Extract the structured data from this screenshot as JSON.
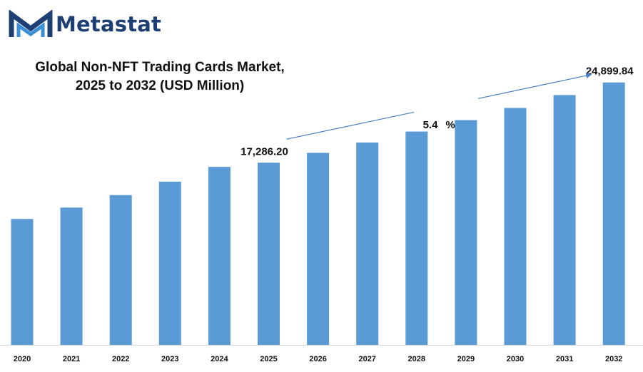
{
  "brand": {
    "name": "Metastat",
    "logo_icon": "metastat-m-logo-icon",
    "logo_colors": [
      "#1e3f73",
      "#3a8fd6"
    ]
  },
  "chart_data": {
    "type": "bar",
    "title_lines": [
      "Global Non-NFT Trading Cards Market,",
      "2025 to 2032 (USD Million)"
    ],
    "xlabel": "",
    "ylabel": "",
    "categories": [
      "2020",
      "2021",
      "2022",
      "2023",
      "2024",
      "2025",
      "2026",
      "2027",
      "2028",
      "2029",
      "2030",
      "2031",
      "2032"
    ],
    "values": [
      11950,
      13030,
      14210,
      15490,
      16890,
      17286.2,
      18220,
      19200,
      20240,
      21330,
      22480,
      23700,
      24899.84
    ],
    "ylim": [
      0,
      26500
    ],
    "bar_color": "#5b9bd5",
    "data_labels": [
      {
        "category": "2025",
        "text": "17,286.20"
      },
      {
        "category": "2032",
        "text": "24,899.84"
      }
    ],
    "annotation": {
      "value": "5.4",
      "unit": "%",
      "from_category": "2025",
      "to_category": "2032",
      "arrow_color": "#4a7fc1"
    },
    "grid": false,
    "legend": "none"
  }
}
